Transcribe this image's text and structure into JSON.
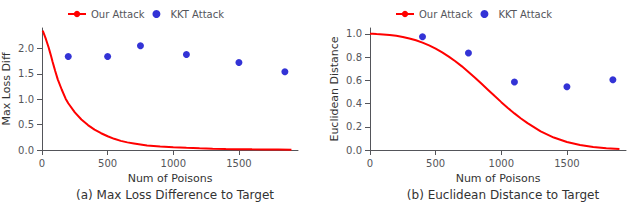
{
  "chart_data": [
    {
      "type": "line",
      "title": "(a) Max Loss Difference to Target",
      "xlabel": "Num of Poisons",
      "ylabel": "Max Loss Diff",
      "xlim": [
        0,
        1950
      ],
      "xticks": [
        0,
        500,
        1000,
        1500
      ],
      "ylim": [
        0,
        2.4
      ],
      "yticks": [
        {
          "value": 0.0,
          "label": "0.0"
        },
        0.5,
        {
          "value": 1.0,
          "label": "1.0"
        },
        1.5,
        {
          "value": 2.0,
          "label": "2.0"
        }
      ],
      "grid": false,
      "legend": "top",
      "series": [
        {
          "name": "Our Attack",
          "type": "line",
          "color": "#ff0000",
          "x": [
            5,
            10,
            20,
            30,
            40,
            50,
            60,
            70,
            80,
            90,
            100,
            120,
            150,
            180,
            200,
            250,
            300,
            350,
            400,
            450,
            500,
            550,
            600,
            650,
            700,
            750,
            800,
            900,
            1000,
            1100,
            1200,
            1300,
            1400,
            1500,
            1600,
            1700,
            1800,
            1900
          ],
          "values": [
            2.35,
            2.32,
            2.25,
            2.18,
            2.1,
            2.02,
            1.93,
            1.84,
            1.74,
            1.65,
            1.56,
            1.39,
            1.19,
            1.01,
            0.92,
            0.74,
            0.6,
            0.49,
            0.4,
            0.33,
            0.27,
            0.22,
            0.18,
            0.15,
            0.13,
            0.11,
            0.09,
            0.07,
            0.055,
            0.043,
            0.034,
            0.027,
            0.021,
            0.017,
            0.013,
            0.01,
            0.008,
            0.006
          ]
        },
        {
          "name": "KKT Attack",
          "type": "scatter",
          "color": "#0000cc",
          "x": [
            200,
            500,
            750,
            1100,
            1500,
            1850
          ],
          "values": [
            1.84,
            1.84,
            2.05,
            1.88,
            1.72,
            1.54
          ]
        }
      ]
    },
    {
      "type": "line",
      "title": "(b) Euclidean Distance to Target",
      "xlabel": "Num of Poisons",
      "ylabel": "Euclidean Distance",
      "xlim": [
        0,
        1950
      ],
      "xticks": [
        0,
        500,
        1000,
        1500
      ],
      "ylim": [
        0.0,
        1.05
      ],
      "yticks": [
        {
          "value": 0.0,
          "label": "0.0"
        },
        0.2,
        0.4,
        0.6,
        0.8,
        {
          "value": 1.0,
          "label": "1.0"
        }
      ],
      "grid": false,
      "legend": "top",
      "series": [
        {
          "name": "Our Attack",
          "type": "line",
          "color": "#ff0000",
          "x": [
            0,
            20,
            50,
            100,
            150,
            200,
            250,
            300,
            350,
            400,
            450,
            500,
            550,
            600,
            650,
            700,
            750,
            800,
            850,
            900,
            950,
            1000,
            1050,
            1100,
            1150,
            1200,
            1300,
            1400,
            1500,
            1600,
            1700,
            1800,
            1900
          ],
          "values": [
            1.0,
            1.0,
            0.998,
            0.995,
            0.99,
            0.983,
            0.973,
            0.96,
            0.944,
            0.924,
            0.9,
            0.872,
            0.84,
            0.804,
            0.764,
            0.72,
            0.672,
            0.622,
            0.57,
            0.517,
            0.464,
            0.412,
            0.362,
            0.315,
            0.271,
            0.231,
            0.16,
            0.107,
            0.069,
            0.043,
            0.026,
            0.015,
            0.009
          ]
        },
        {
          "name": "KKT Attack",
          "type": "scatter",
          "color": "#0000cc",
          "x": [
            400,
            750,
            1100,
            1500,
            1850
          ],
          "values": [
            0.975,
            0.835,
            0.585,
            0.545,
            0.605
          ]
        }
      ]
    }
  ]
}
